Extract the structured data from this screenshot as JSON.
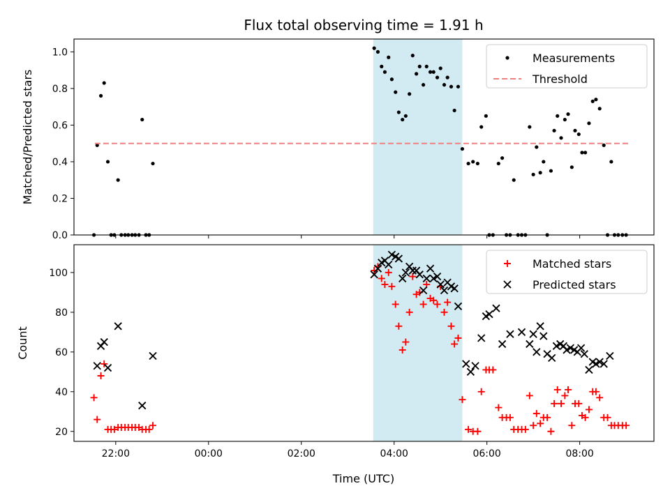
{
  "figure": {
    "title": "Flux total observing time = 1.91 h",
    "xlabel": "Time (UTC)",
    "x_tick_labels": [
      "22:00",
      "00:00",
      "02:00",
      "04:00",
      "06:00",
      "08:00"
    ],
    "x_ticks_hours": [
      22,
      24,
      26,
      28,
      30,
      32
    ],
    "xlim_hours": [
      21.1,
      33.6
    ],
    "highlight_span_hours": [
      27.55,
      29.47
    ],
    "highlight_color": "#add8e6"
  },
  "chart_data": [
    {
      "type": "scatter",
      "ylabel": "Matched/Predicted stars",
      "ylim": [
        0,
        1.07
      ],
      "y_ticks": [
        0.0,
        0.2,
        0.4,
        0.6,
        0.8,
        1.0
      ],
      "y_tick_labels": [
        "0.0",
        "0.2",
        "0.4",
        "0.6",
        "0.8",
        "1.0"
      ],
      "legend_position": "top-right",
      "series": [
        {
          "name": "Measurements",
          "marker": "dot",
          "color": "#000000",
          "points": [
            [
              21.53,
              0
            ],
            [
              21.6,
              0.49
            ],
            [
              21.68,
              0.76
            ],
            [
              21.75,
              0.83
            ],
            [
              21.83,
              0.4
            ],
            [
              21.9,
              0
            ],
            [
              21.97,
              0
            ],
            [
              22.05,
              0.3
            ],
            [
              22.12,
              0
            ],
            [
              22.2,
              0
            ],
            [
              22.27,
              0
            ],
            [
              22.35,
              0
            ],
            [
              22.42,
              0
            ],
            [
              22.5,
              0
            ],
            [
              22.57,
              0.63
            ],
            [
              22.65,
              0
            ],
            [
              22.72,
              0
            ],
            [
              22.8,
              0.39
            ],
            [
              27.57,
              1.02
            ],
            [
              27.65,
              1.0
            ],
            [
              27.73,
              0.92
            ],
            [
              27.8,
              0.89
            ],
            [
              27.88,
              0.97
            ],
            [
              27.95,
              0.85
            ],
            [
              28.03,
              0.78
            ],
            [
              28.1,
              0.67
            ],
            [
              28.18,
              0.63
            ],
            [
              28.25,
              0.65
            ],
            [
              28.33,
              0.77
            ],
            [
              28.4,
              0.98
            ],
            [
              28.48,
              0.88
            ],
            [
              28.55,
              0.92
            ],
            [
              28.63,
              0.82
            ],
            [
              28.7,
              0.92
            ],
            [
              28.78,
              0.89
            ],
            [
              28.85,
              0.89
            ],
            [
              28.93,
              0.86
            ],
            [
              29.0,
              0.91
            ],
            [
              29.08,
              0.82
            ],
            [
              29.15,
              0.86
            ],
            [
              29.23,
              0.81
            ],
            [
              29.3,
              0.68
            ],
            [
              29.38,
              0.81
            ],
            [
              29.47,
              0.47
            ],
            [
              29.6,
              0.39
            ],
            [
              29.7,
              0.4
            ],
            [
              29.8,
              0.39
            ],
            [
              29.88,
              0.59
            ],
            [
              29.98,
              0.65
            ],
            [
              30.05,
              0
            ],
            [
              30.13,
              0
            ],
            [
              30.25,
              0.39
            ],
            [
              30.33,
              0.42
            ],
            [
              30.42,
              0
            ],
            [
              30.5,
              0
            ],
            [
              30.58,
              0.3
            ],
            [
              30.67,
              0
            ],
            [
              30.75,
              0
            ],
            [
              30.83,
              0
            ],
            [
              30.92,
              0.59
            ],
            [
              31.0,
              0.33
            ],
            [
              31.07,
              0.48
            ],
            [
              31.15,
              0.34
            ],
            [
              31.22,
              0.4
            ],
            [
              31.3,
              0
            ],
            [
              31.38,
              0.35
            ],
            [
              31.45,
              0.57
            ],
            [
              31.52,
              0.65
            ],
            [
              31.6,
              0.53
            ],
            [
              31.68,
              0.63
            ],
            [
              31.75,
              0.66
            ],
            [
              31.83,
              0.37
            ],
            [
              31.9,
              0.57
            ],
            [
              31.98,
              0.55
            ],
            [
              32.05,
              0.45
            ],
            [
              32.12,
              0.45
            ],
            [
              32.2,
              0.61
            ],
            [
              32.28,
              0.73
            ],
            [
              32.35,
              0.74
            ],
            [
              32.43,
              0.69
            ],
            [
              32.52,
              0.49
            ],
            [
              32.6,
              0
            ],
            [
              32.68,
              0.4
            ],
            [
              32.75,
              0
            ],
            [
              32.83,
              0
            ],
            [
              32.92,
              0
            ],
            [
              33.0,
              0
            ]
          ]
        },
        {
          "name": "Threshold",
          "marker": "dashed-line",
          "color": "#f08080",
          "x_range": [
            21.55,
            33.05
          ],
          "value": 0.5
        }
      ]
    },
    {
      "type": "scatter",
      "ylabel": "Count",
      "ylim": [
        15,
        114
      ],
      "y_ticks": [
        20,
        40,
        60,
        80,
        100
      ],
      "y_tick_labels": [
        "20",
        "40",
        "60",
        "80",
        "100"
      ],
      "legend_position": "top-right",
      "series": [
        {
          "name": "Matched stars",
          "marker": "plus",
          "color": "#ff0000",
          "points": [
            [
              21.53,
              37
            ],
            [
              21.6,
              26
            ],
            [
              21.68,
              48
            ],
            [
              21.75,
              54
            ],
            [
              21.83,
              21
            ],
            [
              21.9,
              21
            ],
            [
              21.97,
              21
            ],
            [
              22.05,
              22
            ],
            [
              22.12,
              22
            ],
            [
              22.2,
              22
            ],
            [
              22.27,
              22
            ],
            [
              22.35,
              22
            ],
            [
              22.42,
              22
            ],
            [
              22.5,
              22
            ],
            [
              22.57,
              21
            ],
            [
              22.65,
              21
            ],
            [
              22.72,
              21
            ],
            [
              22.8,
              23
            ],
            [
              27.57,
              101
            ],
            [
              27.65,
              103
            ],
            [
              27.73,
              97
            ],
            [
              27.8,
              94
            ],
            [
              27.88,
              100
            ],
            [
              27.95,
              93
            ],
            [
              28.03,
              84
            ],
            [
              28.1,
              73
            ],
            [
              28.18,
              61
            ],
            [
              28.25,
              65
            ],
            [
              28.33,
              80
            ],
            [
              28.4,
              98
            ],
            [
              28.48,
              89
            ],
            [
              28.55,
              90
            ],
            [
              28.63,
              84
            ],
            [
              28.7,
              94
            ],
            [
              28.78,
              87
            ],
            [
              28.85,
              86
            ],
            [
              28.93,
              84
            ],
            [
              29.0,
              93
            ],
            [
              29.08,
              80
            ],
            [
              29.15,
              85
            ],
            [
              29.23,
              73
            ],
            [
              29.3,
              64
            ],
            [
              29.38,
              67
            ],
            [
              29.47,
              36
            ],
            [
              29.6,
              21
            ],
            [
              29.7,
              20
            ],
            [
              29.8,
              20
            ],
            [
              29.88,
              40
            ],
            [
              29.98,
              51
            ],
            [
              30.05,
              51
            ],
            [
              30.13,
              51
            ],
            [
              30.25,
              32
            ],
            [
              30.33,
              27
            ],
            [
              30.42,
              27
            ],
            [
              30.5,
              27
            ],
            [
              30.58,
              21
            ],
            [
              30.67,
              21
            ],
            [
              30.75,
              21
            ],
            [
              30.83,
              21
            ],
            [
              30.92,
              38
            ],
            [
              31.0,
              23
            ],
            [
              31.07,
              29
            ],
            [
              31.15,
              24
            ],
            [
              31.22,
              27
            ],
            [
              31.3,
              27
            ],
            [
              31.38,
              20
            ],
            [
              31.45,
              34
            ],
            [
              31.52,
              41
            ],
            [
              31.6,
              34
            ],
            [
              31.68,
              38
            ],
            [
              31.75,
              41
            ],
            [
              31.83,
              23
            ],
            [
              31.9,
              34
            ],
            [
              31.98,
              34
            ],
            [
              32.05,
              28
            ],
            [
              32.12,
              27
            ],
            [
              32.2,
              31
            ],
            [
              32.28,
              40
            ],
            [
              32.35,
              40
            ],
            [
              32.43,
              37
            ],
            [
              32.52,
              27
            ],
            [
              32.6,
              27
            ],
            [
              32.68,
              23
            ],
            [
              32.75,
              23
            ],
            [
              32.83,
              23
            ],
            [
              32.92,
              23
            ],
            [
              33.0,
              23
            ]
          ]
        },
        {
          "name": "Predicted stars",
          "marker": "x",
          "color": "#000000",
          "points": [
            [
              21.6,
              53
            ],
            [
              21.68,
              63
            ],
            [
              21.75,
              65
            ],
            [
              21.83,
              52
            ],
            [
              22.05,
              73
            ],
            [
              22.57,
              33
            ],
            [
              22.8,
              58
            ],
            [
              27.57,
              99
            ],
            [
              27.65,
              102
            ],
            [
              27.73,
              105
            ],
            [
              27.8,
              106
            ],
            [
              27.88,
              104
            ],
            [
              27.95,
              109
            ],
            [
              28.03,
              108
            ],
            [
              28.1,
              107
            ],
            [
              28.18,
              97
            ],
            [
              28.25,
              100
            ],
            [
              28.33,
              103
            ],
            [
              28.4,
              101
            ],
            [
              28.48,
              101
            ],
            [
              28.55,
              99
            ],
            [
              28.63,
              91
            ],
            [
              28.7,
              97
            ],
            [
              28.78,
              102
            ],
            [
              28.85,
              97
            ],
            [
              28.93,
              98
            ],
            [
              29.0,
              94
            ],
            [
              29.08,
              91
            ],
            [
              29.15,
              95
            ],
            [
              29.23,
              93
            ],
            [
              29.3,
              92
            ],
            [
              29.38,
              83
            ],
            [
              29.55,
              54
            ],
            [
              29.65,
              50
            ],
            [
              29.75,
              53
            ],
            [
              29.88,
              67
            ],
            [
              29.98,
              78
            ],
            [
              30.05,
              79
            ],
            [
              30.2,
              82
            ],
            [
              30.33,
              64
            ],
            [
              30.5,
              69
            ],
            [
              30.75,
              70
            ],
            [
              30.92,
              64
            ],
            [
              31.0,
              69
            ],
            [
              31.07,
              60
            ],
            [
              31.15,
              73
            ],
            [
              31.22,
              68
            ],
            [
              31.3,
              59
            ],
            [
              31.4,
              57
            ],
            [
              31.5,
              63
            ],
            [
              31.58,
              64
            ],
            [
              31.65,
              63
            ],
            [
              31.72,
              61
            ],
            [
              31.8,
              62
            ],
            [
              31.88,
              61
            ],
            [
              31.95,
              60
            ],
            [
              32.03,
              62
            ],
            [
              32.1,
              59
            ],
            [
              32.2,
              51
            ],
            [
              32.28,
              55
            ],
            [
              32.35,
              54
            ],
            [
              32.43,
              55
            ],
            [
              32.52,
              54
            ],
            [
              32.65,
              58
            ]
          ]
        }
      ]
    }
  ]
}
